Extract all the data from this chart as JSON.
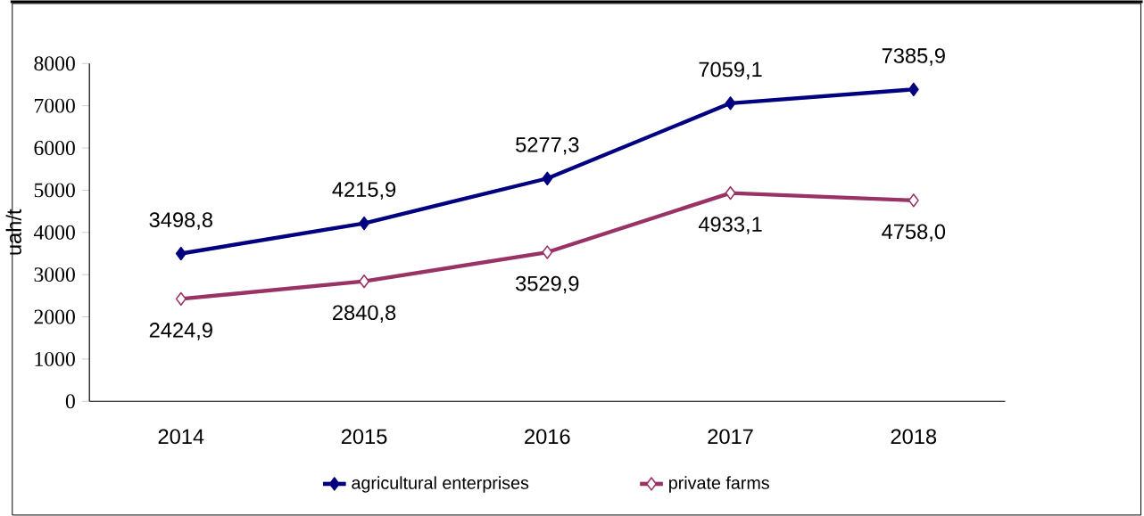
{
  "chart_data": {
    "type": "line",
    "ylabel": "uah/t",
    "categories": [
      "2014",
      "2015",
      "2016",
      "2017",
      "2018"
    ],
    "series": [
      {
        "name": "agricultural enterprises",
        "color": "#000080",
        "values": [
          3498.8,
          4215.9,
          5277.3,
          7059.1,
          7385.9
        ],
        "value_labels": [
          "3498,8",
          "4215,9",
          "5277,3",
          "7059,1",
          "7385,9"
        ]
      },
      {
        "name": "private farms",
        "color": "#993366",
        "values": [
          2424.9,
          2840.8,
          3529.9,
          4933.1,
          4758.0
        ],
        "value_labels": [
          "2424,9",
          "2840,8",
          "3529,9",
          "4933,1",
          "4758,0"
        ]
      }
    ],
    "ylim": [
      0,
      8000
    ],
    "yticks": [
      0,
      1000,
      2000,
      3000,
      4000,
      5000,
      6000,
      7000,
      8000
    ],
    "marker": "diamond",
    "line_style": "solid",
    "legend": "bottom",
    "grid": false
  }
}
